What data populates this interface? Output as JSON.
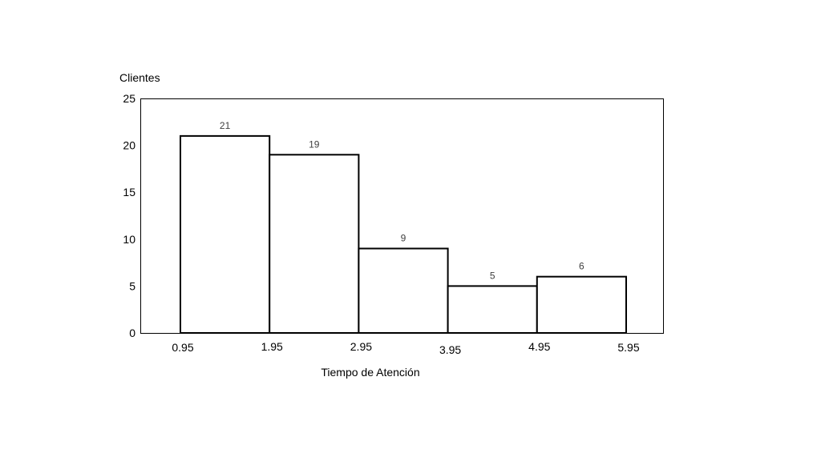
{
  "chart_data": {
    "type": "bar",
    "title": "",
    "ylabel": "Clientes",
    "xlabel": "Tiempo de Atención",
    "ylim": [
      0,
      25
    ],
    "y_ticks": [
      "0",
      "5",
      "10",
      "15",
      "20",
      "25"
    ],
    "x_edges": [
      "0.95",
      "1.95",
      "2.95",
      "3.95",
      "4.95",
      "5.95"
    ],
    "bins": [
      {
        "from": 0.95,
        "to": 1.95,
        "value": 21,
        "label": "21"
      },
      {
        "from": 1.95,
        "to": 2.95,
        "value": 19,
        "label": "19"
      },
      {
        "from": 2.95,
        "to": 3.95,
        "value": 9,
        "label": "9"
      },
      {
        "from": 3.95,
        "to": 4.95,
        "value": 5,
        "label": "5"
      },
      {
        "from": 4.95,
        "to": 5.95,
        "value": 6,
        "label": "6"
      }
    ],
    "grid": false,
    "legend": "none"
  }
}
